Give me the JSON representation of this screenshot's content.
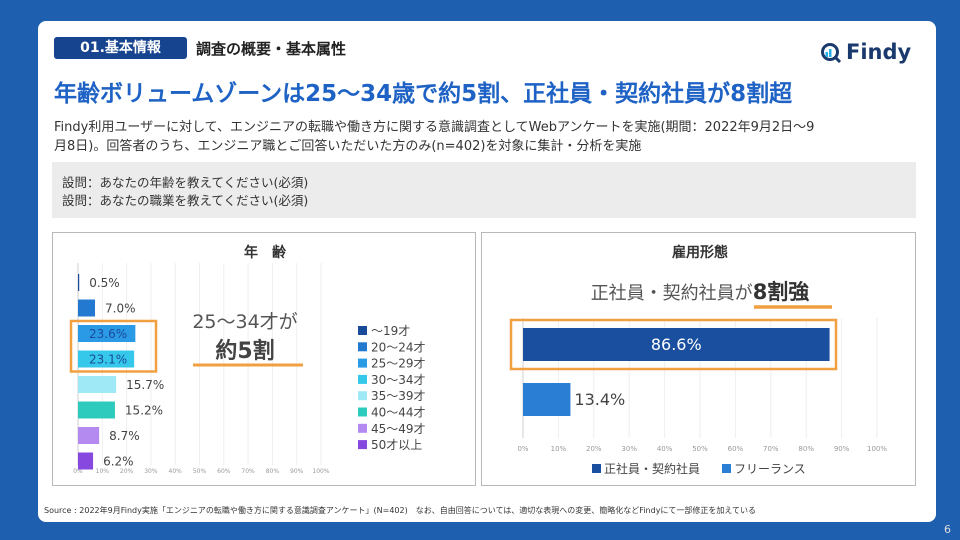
{
  "header": {
    "section_badge": "01.基本情報",
    "section_title": "調査の概要・基本属性",
    "logo_text": "Findy",
    "headline": "年齢ボリュームゾーンは25〜34歳で約5割、正社員・契約社員が8割超"
  },
  "description": [
    "Findy利用ユーザーに対して、エンジニアの転職や働き方に関する意識調査としてWebアンケートを実施(期間：2022年9月2日〜9",
    "月8日)。回答者のうち、エンジニア職とご回答いただいた方のみ(n=402)を対象に集計・分析を実施"
  ],
  "questions": [
    "設問：あなたの年齢を教えてください(必須)",
    "設問：あなたの職業を教えてください(必須)"
  ],
  "colors": {
    "background": "#1f5fb0",
    "headline": "#1d62c4",
    "badge": "#16448f",
    "highlight": "#f0a040"
  },
  "chart_data": [
    {
      "type": "bar",
      "orientation": "horizontal",
      "title": "年　齢",
      "categories": [
        "〜19才",
        "20〜24才",
        "25〜29才",
        "30〜34才",
        "35〜39才",
        "40〜44才",
        "45〜49才",
        "50才以上"
      ],
      "values": [
        0.5,
        7.0,
        23.6,
        23.1,
        15.7,
        15.2,
        8.7,
        6.2
      ],
      "value_labels": [
        "0.5%",
        "7.0%",
        "23.6%",
        "23.1%",
        "15.7%",
        "15.2%",
        "8.7%",
        "6.2%"
      ],
      "colors": [
        "#1a4a9a",
        "#2378cf",
        "#2a9ae6",
        "#35c8ea",
        "#9ee9f5",
        "#2dcbbd",
        "#b48af0",
        "#8748e0"
      ],
      "xlim": [
        0,
        100
      ],
      "xticks": [
        "0%",
        "10%",
        "20%",
        "30%",
        "40%",
        "50%",
        "60%",
        "70%",
        "80%",
        "90%",
        "100%"
      ],
      "legend_position": "right",
      "highlighted_categories": [
        "25〜29才",
        "30〜34才"
      ],
      "annotation": {
        "line1": "25〜34才が",
        "line2": "約5割"
      }
    },
    {
      "type": "bar",
      "orientation": "horizontal",
      "title": "雇用形態",
      "categories": [
        "正社員・契約社員",
        "フリーランス"
      ],
      "values": [
        86.6,
        13.4
      ],
      "value_labels": [
        "86.6%",
        "13.4%"
      ],
      "colors": [
        "#1a4fa0",
        "#2a7fd4"
      ],
      "xlim": [
        0,
        100
      ],
      "xticks": [
        "0%",
        "10%",
        "20%",
        "30%",
        "40%",
        "50%",
        "60%",
        "70%",
        "80%",
        "90%",
        "100%"
      ],
      "legend_position": "bottom",
      "highlighted_categories": [
        "正社員・契約社員"
      ],
      "annotation": {
        "prefix": "正社員・契約社員が",
        "emphasis": "8割強"
      }
    }
  ],
  "footer": {
    "source": "Source : 2022年9月Findy実施「エンジニアの転職や働き方に関する意識調査アンケート」(N=402)　なお、自由回答については、適切な表現への変更、簡略化などFindyにて一部修正を加えている",
    "page_number": "6"
  }
}
